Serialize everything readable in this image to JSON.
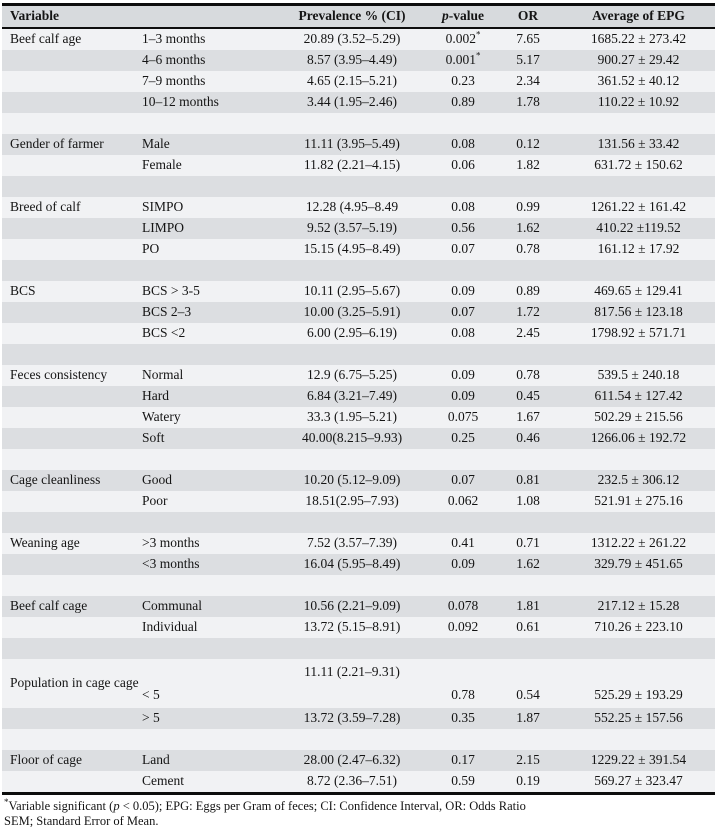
{
  "colors": {
    "header_bg": "#d7dadd",
    "stripe_gray": "#dcdee1",
    "stripe_light": "#f1f2f4",
    "border_color": "#0d0d0d",
    "text_color": "#141414"
  },
  "header": {
    "variable": "Variable",
    "prevalence": "Prevalence % (CI)",
    "pvalue_italic": "p",
    "pvalue_rest": "-value",
    "or": "OR",
    "epg": "Average of EPG"
  },
  "table": {
    "groups": [
      {
        "variable": "Beef calf age",
        "rows": [
          {
            "category": "1–3 months",
            "prevalence": "20.89 (3.52–5.29)",
            "p": "0.002*",
            "or": "7.65",
            "epg": "1685.22 ± 273.42"
          },
          {
            "category": "4–6 months",
            "prevalence": "8.57 (3.95–4.49)",
            "p": "0.001*",
            "or": "5.17",
            "epg": "900.27 ± 29.42"
          },
          {
            "category": "7–9 months",
            "prevalence": "4.65 (2.15–5.21)",
            "p": "0.23",
            "or": "2.34",
            "epg": "361.52 ± 40.12"
          },
          {
            "category": "10–12 months",
            "prevalence": "3.44 (1.95–2.46)",
            "p": "0.89",
            "or": "1.78",
            "epg": "110.22 ± 10.92"
          }
        ]
      },
      {
        "variable": "Gender of farmer",
        "rows": [
          {
            "category": "Male",
            "prevalence": "11.11 (3.95–5.49)",
            "p": "0.08",
            "or": "0.12",
            "epg": "131.56 ± 33.42"
          },
          {
            "category": "Female",
            "prevalence": "11.82 (2.21–4.15)",
            "p": "0.06",
            "or": "1.82",
            "epg": "631.72 ± 150.62"
          }
        ]
      },
      {
        "variable": "Breed of calf",
        "rows": [
          {
            "category": "SIMPO",
            "prevalence": "12.28 (4.95–8.49",
            "p": "0.08",
            "or": "0.99",
            "epg": "1261.22 ± 161.42"
          },
          {
            "category": "LIMPO",
            "prevalence": "9.52 (3.57–5.19)",
            "p": "0.56",
            "or": "1.62",
            "epg": "410.22 ±119.52"
          },
          {
            "category": "PO",
            "prevalence": "15.15 (4.95–8.49)",
            "p": "0.07",
            "or": "0.78",
            "epg": "161.12 ± 17.92"
          }
        ]
      },
      {
        "variable": "BCS",
        "rows": [
          {
            "category": "BCS > 3-5",
            "prevalence": "10.11 (2.95–5.67)",
            "p": "0.09",
            "or": "0.89",
            "epg": "469.65 ± 129.41"
          },
          {
            "category": "BCS 2–3",
            "prevalence": "10.00 (3.25–5.91)",
            "p": "0.07",
            "or": "1.72",
            "epg": "817.56 ± 123.18"
          },
          {
            "category": "BCS <2",
            "prevalence": "6.00 (2.95–6.19)",
            "p": "0.08",
            "or": "2.45",
            "epg": "1798.92 ± 571.71"
          }
        ]
      },
      {
        "variable": "Feces consistency",
        "rows": [
          {
            "category": "Normal",
            "prevalence": "12.9 (6.75–5.25)",
            "p": "0.09",
            "or": "0.78",
            "epg": "539.5 ± 240.18"
          },
          {
            "category": "Hard",
            "prevalence": "6.84 (3.21–7.49)",
            "p": "0.09",
            "or": "0.45",
            "epg": "611.54 ± 127.42"
          },
          {
            "category": "Watery",
            "prevalence": "33.3 (1.95–5.21)",
            "p": "0.075",
            "or": "1.67",
            "epg": "502.29 ± 215.56"
          },
          {
            "category": "Soft",
            "prevalence": "40.00(8.215–9.93)",
            "p": "0.25",
            "or": "0.46",
            "epg": "1266.06 ± 192.72"
          }
        ]
      },
      {
        "variable": "Cage cleanliness",
        "rows": [
          {
            "category": "Good",
            "prevalence": "10.20 (5.12–9.09)",
            "p": "0.07",
            "or": "0.81",
            "epg": "232.5 ± 306.12"
          },
          {
            "category": "Poor",
            "prevalence": "18.51(2.95–7.93)",
            "p": "0.062",
            "or": "1.08",
            "epg": "521.91 ± 275.16"
          }
        ]
      },
      {
        "variable": "Weaning age",
        "rows": [
          {
            "category": ">3 months",
            "prevalence": "7.52 (3.57–7.39)",
            "p": "0.41",
            "or": "0.71",
            "epg": "1312.22 ± 261.22"
          },
          {
            "category": "<3 months",
            "prevalence": "16.04 (5.95–8.49)",
            "p": "0.09",
            "or": "1.62",
            "epg": "329.79 ± 451.65"
          }
        ]
      },
      {
        "variable": "Beef calf cage",
        "rows": [
          {
            "category": "Communal",
            "prevalence": "10.56 (2.21–9.09)",
            "p": "0.078",
            "or": "1.81",
            "epg": "217.12 ± 15.28"
          },
          {
            "category": "Individual",
            "prevalence": "13.72 (5.15–8.91)",
            "p": "0.092",
            "or": "0.61",
            "epg": "710.26 ± 223.10"
          }
        ]
      },
      {
        "variable": "Population in cage cage",
        "rows": [
          {
            "category": "< 5",
            "prevalence": "11.11 (2.21–9.31)",
            "p": "0.78",
            "or": "0.54",
            "epg": "525.29 ± 193.29",
            "tall": true
          },
          {
            "category": "> 5",
            "prevalence": "13.72 (3.59–7.28)",
            "p": "0.35",
            "or": "1.87",
            "epg": "552.25 ± 157.56"
          }
        ]
      },
      {
        "variable": "Floor of cage",
        "rows": [
          {
            "category": "Land",
            "prevalence": "28.00 (2.47–6.32)",
            "p": "0.17",
            "or": "2.15",
            "epg": "1229.22 ± 391.54"
          },
          {
            "category": "Cement",
            "prevalence": "8.72 (2.36–7.51)",
            "p": "0.59",
            "or": "0.19",
            "epg": "569.27 ± 323.47"
          }
        ]
      }
    ]
  },
  "footnote": {
    "sup": "*",
    "seg1": "Variable significant (",
    "italic_p": "p",
    "seg2": " < 0.05); EPG: Eggs per Gram of feces; CI: Confidence Interval, OR: Odds Ratio",
    "line2": "SEM; Standard Error of Mean."
  }
}
